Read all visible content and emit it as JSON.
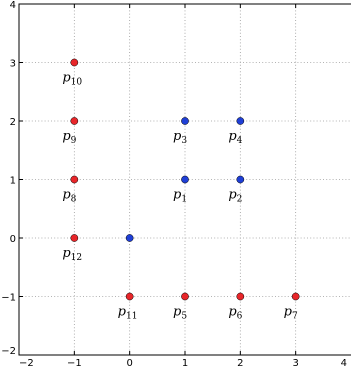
{
  "chart_data": {
    "type": "scatter",
    "title": "",
    "xlabel": "",
    "ylabel": "",
    "xlim": [
      -2,
      4
    ],
    "ylim": [
      -2,
      4
    ],
    "xticks": [
      -2,
      -1,
      0,
      1,
      2,
      3,
      4
    ],
    "yticks": [
      -2,
      -1,
      0,
      1,
      2,
      3,
      4
    ],
    "xtick_labels": [
      "−2",
      "−1",
      "0",
      "1",
      "2",
      "3",
      "4"
    ],
    "ytick_labels": [
      "−2",
      "−1",
      "0",
      "1",
      "2",
      "3",
      "4"
    ],
    "grid": true,
    "colors": {
      "red": "#e8262a",
      "blue": "#1f3fd6"
    },
    "points": [
      {
        "x": 1,
        "y": 1,
        "color": "blue",
        "label": "p",
        "sub": "1"
      },
      {
        "x": 2,
        "y": 1,
        "color": "blue",
        "label": "p",
        "sub": "2"
      },
      {
        "x": 1,
        "y": 2,
        "color": "blue",
        "label": "p",
        "sub": "3"
      },
      {
        "x": 2,
        "y": 2,
        "color": "blue",
        "label": "p",
        "sub": "4"
      },
      {
        "x": 1,
        "y": -1,
        "color": "red",
        "label": "p",
        "sub": "5"
      },
      {
        "x": 2,
        "y": -1,
        "color": "red",
        "label": "p",
        "sub": "6"
      },
      {
        "x": 3,
        "y": -1,
        "color": "red",
        "label": "p",
        "sub": "7"
      },
      {
        "x": -1,
        "y": 1,
        "color": "red",
        "label": "p",
        "sub": "8"
      },
      {
        "x": -1,
        "y": 2,
        "color": "red",
        "label": "p",
        "sub": "9"
      },
      {
        "x": -1,
        "y": 3,
        "color": "red",
        "label": "p",
        "sub": "10"
      },
      {
        "x": 0,
        "y": -1,
        "color": "red",
        "label": "p",
        "sub": "11"
      },
      {
        "x": -1,
        "y": 0,
        "color": "red",
        "label": "p",
        "sub": "12"
      },
      {
        "x": 0,
        "y": 0,
        "color": "blue",
        "label": "",
        "sub": ""
      }
    ]
  }
}
